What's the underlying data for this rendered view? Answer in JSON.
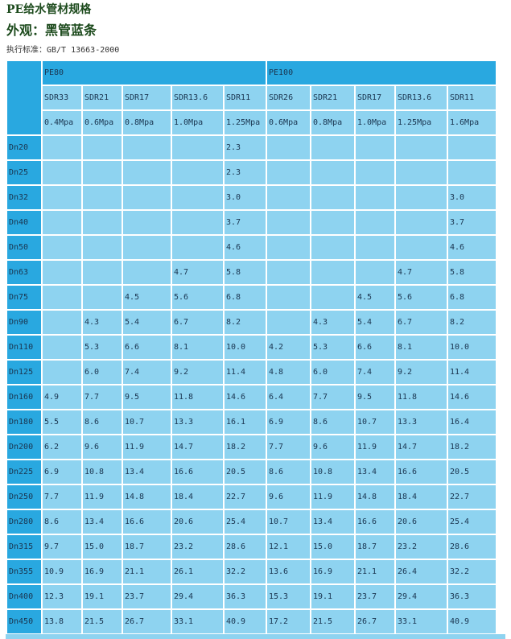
{
  "header": {
    "title": "PE给水管材规格",
    "subtitle": "外观：黑管蓝条",
    "standard": "执行标准：GB/T 13663-2000"
  },
  "table": {
    "groups": [
      {
        "label": "PE80",
        "span": 5
      },
      {
        "label": "PE100",
        "span": 5
      }
    ],
    "sdr": [
      "SDR33",
      "SDR21",
      "SDR17",
      "SDR13.6",
      "SDR11",
      "SDR26",
      "SDR21",
      "SDR17",
      "SDR13.6",
      "SDR11"
    ],
    "pressure": [
      "0.4Mpa",
      "0.6Mpa",
      "0.8Mpa",
      "1.0Mpa",
      "1.25Mpa",
      "0.6Mpa",
      "0.8Mpa",
      "1.0Mpa",
      "1.25Mpa",
      "1.6Mpa"
    ],
    "rows": [
      {
        "dn": "Dn20",
        "values": [
          "",
          "",
          "",
          "",
          "2.3",
          "",
          "",
          "",
          "",
          ""
        ]
      },
      {
        "dn": "Dn25",
        "values": [
          "",
          "",
          "",
          "",
          "2.3",
          "",
          "",
          "",
          "",
          ""
        ]
      },
      {
        "dn": "Dn32",
        "values": [
          "",
          "",
          "",
          "",
          "3.0",
          "",
          "",
          "",
          "",
          "3.0"
        ]
      },
      {
        "dn": "Dn40",
        "values": [
          "",
          "",
          "",
          "",
          "3.7",
          "",
          "",
          "",
          "",
          "3.7"
        ]
      },
      {
        "dn": "Dn50",
        "values": [
          "",
          "",
          "",
          "",
          "4.6",
          "",
          "",
          "",
          "",
          "4.6"
        ]
      },
      {
        "dn": "Dn63",
        "values": [
          "",
          "",
          "",
          "4.7",
          "5.8",
          "",
          "",
          "",
          "4.7",
          "5.8"
        ]
      },
      {
        "dn": "Dn75",
        "values": [
          "",
          "",
          "4.5",
          "5.6",
          "6.8",
          "",
          "",
          "4.5",
          "5.6",
          "6.8"
        ]
      },
      {
        "dn": "Dn90",
        "values": [
          "",
          "4.3",
          "5.4",
          "6.7",
          "8.2",
          "",
          "4.3",
          "5.4",
          "6.7",
          "8.2"
        ]
      },
      {
        "dn": "Dn110",
        "values": [
          "",
          "5.3",
          "6.6",
          "8.1",
          "10.0",
          "4.2",
          "5.3",
          "6.6",
          "8.1",
          "10.0"
        ]
      },
      {
        "dn": "Dn125",
        "values": [
          "",
          "6.0",
          "7.4",
          "9.2",
          "11.4",
          "4.8",
          "6.0",
          "7.4",
          "9.2",
          "11.4"
        ]
      },
      {
        "dn": "Dn160",
        "values": [
          "4.9",
          "7.7",
          "9.5",
          "11.8",
          "14.6",
          "6.4",
          "7.7",
          "9.5",
          "11.8",
          "14.6"
        ]
      },
      {
        "dn": "Dn180",
        "values": [
          "5.5",
          "8.6",
          "10.7",
          "13.3",
          "16.1",
          "6.9",
          "8.6",
          "10.7",
          "13.3",
          "16.4"
        ]
      },
      {
        "dn": "Dn200",
        "values": [
          "6.2",
          "9.6",
          "11.9",
          "14.7",
          "18.2",
          "7.7",
          "9.6",
          "11.9",
          "14.7",
          "18.2"
        ]
      },
      {
        "dn": "Dn225",
        "values": [
          "6.9",
          "10.8",
          "13.4",
          "16.6",
          "20.5",
          "8.6",
          "10.8",
          "13.4",
          "16.6",
          "20.5"
        ]
      },
      {
        "dn": "Dn250",
        "values": [
          "7.7",
          "11.9",
          "14.8",
          "18.4",
          "22.7",
          "9.6",
          "11.9",
          "14.8",
          "18.4",
          "22.7"
        ]
      },
      {
        "dn": "Dn280",
        "values": [
          "8.6",
          "13.4",
          "16.6",
          "20.6",
          "25.4",
          "10.7",
          "13.4",
          "16.6",
          "20.6",
          "25.4"
        ]
      },
      {
        "dn": "Dn315",
        "values": [
          "9.7",
          "15.0",
          "18.7",
          "23.2",
          "28.6",
          "12.1",
          "15.0",
          "18.7",
          "23.2",
          "28.6"
        ]
      },
      {
        "dn": "Dn355",
        "values": [
          "10.9",
          "16.9",
          "21.1",
          "26.1",
          "32.2",
          "13.6",
          "16.9",
          "21.1",
          "26.4",
          "32.2"
        ]
      },
      {
        "dn": "Dn400",
        "values": [
          "12.3",
          "19.1",
          "23.7",
          "29.4",
          "36.3",
          "15.3",
          "19.1",
          "23.7",
          "29.4",
          "36.3"
        ]
      },
      {
        "dn": "Dn450",
        "values": [
          "13.8",
          "21.5",
          "26.7",
          "33.1",
          "40.9",
          "17.2",
          "21.5",
          "26.7",
          "33.1",
          "40.9"
        ]
      }
    ]
  }
}
